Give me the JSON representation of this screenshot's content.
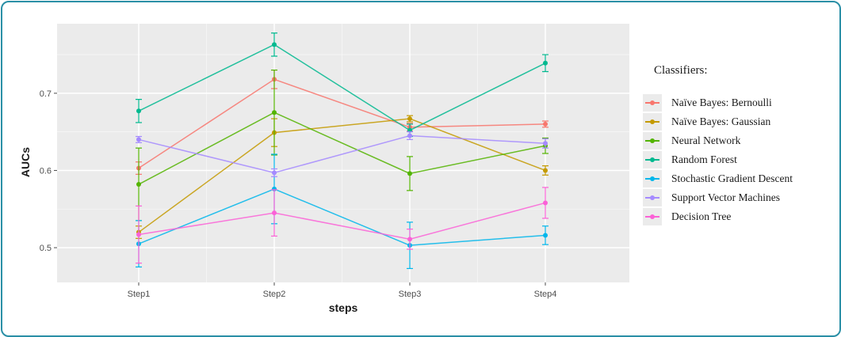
{
  "chart_data": {
    "type": "line",
    "title": "",
    "xlabel": "steps",
    "ylabel": "AUCs",
    "categories": [
      "Step1",
      "Step2",
      "Step3",
      "Step4"
    ],
    "y_ticks": [
      "0.5",
      "0.6",
      "0.7"
    ],
    "ylim": [
      0.455,
      0.79
    ],
    "grid": true,
    "legend_title": "Classifiers:",
    "legend_position": "right",
    "series": [
      {
        "name": "Naïve Bayes: Bernoulli",
        "color": "#f8766d",
        "values": [
          0.603,
          0.718,
          0.656,
          0.66
        ],
        "err": [
          0.008,
          0.012,
          0.005,
          0.004
        ]
      },
      {
        "name": "Naïve Bayes: Gaussian",
        "color": "#c49a00",
        "values": [
          0.52,
          0.649,
          0.667,
          0.6
        ],
        "err": [
          0.008,
          0.018,
          0.004,
          0.006
        ]
      },
      {
        "name": "Neural Network",
        "color": "#53b400",
        "values": [
          0.582,
          0.675,
          0.596,
          0.632
        ],
        "err": [
          0.047,
          0.055,
          0.022,
          0.01
        ]
      },
      {
        "name": "Random Forest",
        "color": "#00b98f",
        "values": [
          0.677,
          0.763,
          0.652,
          0.739
        ],
        "err": [
          0.015,
          0.015,
          0.008,
          0.011
        ]
      },
      {
        "name": "Stochastic Gradient Descent",
        "color": "#00b6eb",
        "values": [
          0.505,
          0.576,
          0.503,
          0.516
        ],
        "err": [
          0.03,
          0.045,
          0.03,
          0.012
        ]
      },
      {
        "name": "Support Vector Machines",
        "color": "#a58aff",
        "values": [
          0.64,
          0.597,
          0.645,
          0.635
        ],
        "err": [
          0.004,
          0.005,
          0.005,
          0.006
        ]
      },
      {
        "name": "Decision Tree",
        "color": "#fb61d7",
        "values": [
          0.517,
          0.545,
          0.511,
          0.558
        ],
        "err": [
          0.037,
          0.03,
          0.013,
          0.02
        ]
      }
    ]
  }
}
